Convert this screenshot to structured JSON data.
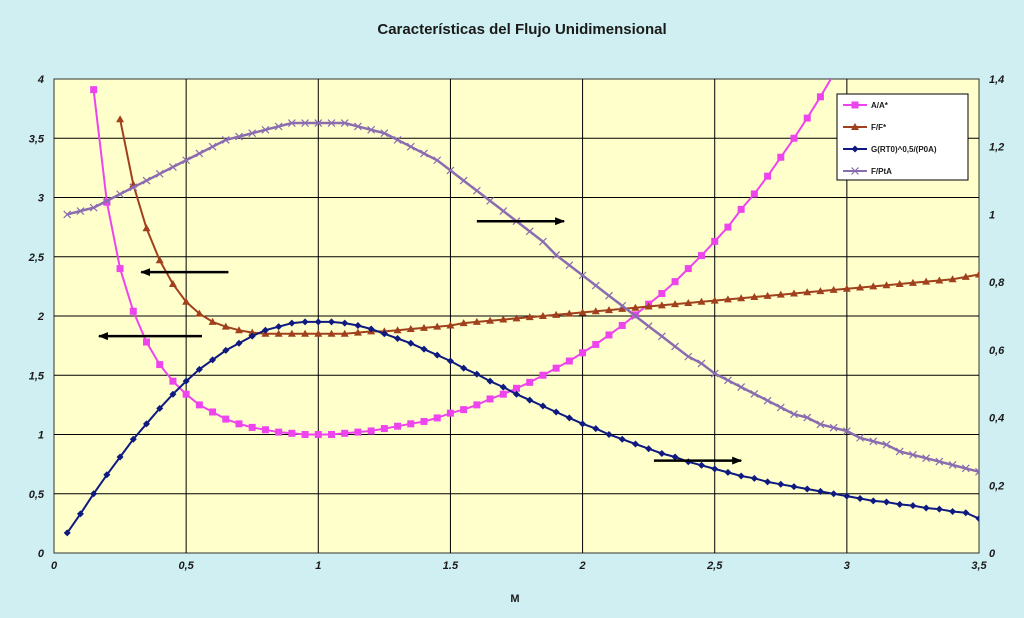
{
  "chart_data": {
    "type": "line",
    "title": "Características del Flujo Unidimensional",
    "xlabel": "M",
    "ylabel": "",
    "y2label": "",
    "xlim": [
      0,
      3.5
    ],
    "ylim": [
      0,
      4
    ],
    "y2lim": [
      0,
      1.4
    ],
    "x_ticks": [
      "0",
      "0,5",
      "1",
      "1.5",
      "2",
      "2,5",
      "3",
      "3,5"
    ],
    "x_tick_values": [
      0,
      0.5,
      1,
      1.5,
      2,
      2.5,
      3,
      3.5
    ],
    "y_ticks": [
      "0",
      "0,5",
      "1",
      "1,5",
      "2",
      "2,5",
      "3",
      "3,5",
      "4"
    ],
    "y_tick_values": [
      0,
      0.5,
      1,
      1.5,
      2,
      2.5,
      3,
      3.5,
      4
    ],
    "y2_ticks": [
      "0",
      "0,2",
      "0,4",
      "0,6",
      "0,8",
      "1",
      "1,2",
      "1,4"
    ],
    "y2_tick_values": [
      0,
      0.2,
      0.4,
      0.6,
      0.8,
      1.0,
      1.2,
      1.4
    ],
    "grid": true,
    "legend_position": "top-right",
    "colors": {
      "plot_bg": "#ffffcc",
      "page_bg": "#cfeff2",
      "grid": "#000000"
    },
    "series": [
      {
        "name": "A/A*",
        "axis": "left",
        "color": "#ee44ee",
        "marker": "square",
        "x": [
          0.15,
          0.2,
          0.25,
          0.3,
          0.35,
          0.4,
          0.45,
          0.5,
          0.55,
          0.6,
          0.65,
          0.7,
          0.75,
          0.8,
          0.85,
          0.9,
          0.95,
          1.0,
          1.05,
          1.1,
          1.15,
          1.2,
          1.25,
          1.3,
          1.35,
          1.4,
          1.45,
          1.5,
          1.55,
          1.6,
          1.65,
          1.7,
          1.75,
          1.8,
          1.85,
          1.9,
          1.95,
          2.0,
          2.05,
          2.1,
          2.15,
          2.2,
          2.25,
          2.3,
          2.35,
          2.4,
          2.45,
          2.5,
          2.55,
          2.6,
          2.65,
          2.7,
          2.75,
          2.8,
          2.85,
          2.9,
          2.95
        ],
        "values": [
          3.91,
          2.96,
          2.4,
          2.04,
          1.78,
          1.59,
          1.45,
          1.34,
          1.25,
          1.19,
          1.13,
          1.09,
          1.06,
          1.04,
          1.02,
          1.01,
          1.0,
          1.0,
          1.0,
          1.01,
          1.02,
          1.03,
          1.05,
          1.07,
          1.09,
          1.11,
          1.14,
          1.18,
          1.21,
          1.25,
          1.3,
          1.34,
          1.39,
          1.44,
          1.5,
          1.56,
          1.62,
          1.69,
          1.76,
          1.84,
          1.92,
          2.01,
          2.1,
          2.19,
          2.29,
          2.4,
          2.51,
          2.63,
          2.75,
          2.9,
          3.03,
          3.18,
          3.34,
          3.5,
          3.67,
          3.85,
          4.04
        ]
      },
      {
        "name": "F/F*",
        "axis": "left",
        "color": "#a0401c",
        "marker": "triangle",
        "x": [
          0.25,
          0.3,
          0.35,
          0.4,
          0.45,
          0.5,
          0.55,
          0.6,
          0.65,
          0.7,
          0.75,
          0.8,
          0.85,
          0.9,
          0.95,
          1.0,
          1.05,
          1.1,
          1.15,
          1.2,
          1.25,
          1.3,
          1.35,
          1.4,
          1.45,
          1.5,
          1.55,
          1.6,
          1.65,
          1.7,
          1.75,
          1.8,
          1.85,
          1.9,
          1.95,
          2.0,
          2.05,
          2.1,
          2.15,
          2.2,
          2.25,
          2.3,
          2.35,
          2.4,
          2.45,
          2.5,
          2.55,
          2.6,
          2.65,
          2.7,
          2.75,
          2.8,
          2.85,
          2.9,
          2.95,
          3.0,
          3.05,
          3.1,
          3.15,
          3.2,
          3.25,
          3.3,
          3.35,
          3.4,
          3.45,
          3.5
        ],
        "values": [
          3.66,
          3.11,
          2.74,
          2.47,
          2.27,
          2.12,
          2.02,
          1.95,
          1.91,
          1.88,
          1.86,
          1.85,
          1.85,
          1.85,
          1.85,
          1.85,
          1.85,
          1.85,
          1.86,
          1.87,
          1.87,
          1.88,
          1.89,
          1.9,
          1.91,
          1.92,
          1.94,
          1.95,
          1.96,
          1.97,
          1.98,
          1.99,
          2.0,
          2.01,
          2.02,
          2.03,
          2.04,
          2.05,
          2.06,
          2.07,
          2.08,
          2.09,
          2.1,
          2.11,
          2.12,
          2.13,
          2.14,
          2.15,
          2.16,
          2.17,
          2.18,
          2.19,
          2.2,
          2.21,
          2.22,
          2.23,
          2.24,
          2.25,
          2.26,
          2.27,
          2.28,
          2.29,
          2.3,
          2.31,
          2.33,
          2.35
        ]
      },
      {
        "name": "G(RT0)^0,5/(P0A)",
        "axis": "left",
        "color": "#0e1a80",
        "marker": "diamond",
        "x": [
          0.05,
          0.1,
          0.15,
          0.2,
          0.25,
          0.3,
          0.35,
          0.4,
          0.45,
          0.5,
          0.55,
          0.6,
          0.65,
          0.7,
          0.75,
          0.8,
          0.85,
          0.9,
          0.95,
          1.0,
          1.05,
          1.1,
          1.15,
          1.2,
          1.25,
          1.3,
          1.35,
          1.4,
          1.45,
          1.5,
          1.55,
          1.6,
          1.65,
          1.7,
          1.75,
          1.8,
          1.85,
          1.9,
          1.95,
          2.0,
          2.05,
          2.1,
          2.15,
          2.2,
          2.25,
          2.3,
          2.35,
          2.4,
          2.45,
          2.5,
          2.55,
          2.6,
          2.65,
          2.7,
          2.75,
          2.8,
          2.85,
          2.9,
          2.95,
          3.0,
          3.05,
          3.1,
          3.15,
          3.2,
          3.25,
          3.3,
          3.35,
          3.4,
          3.45,
          3.5
        ],
        "values": [
          0.17,
          0.33,
          0.5,
          0.66,
          0.81,
          0.96,
          1.09,
          1.22,
          1.34,
          1.45,
          1.55,
          1.63,
          1.71,
          1.77,
          1.83,
          1.88,
          1.91,
          1.94,
          1.95,
          1.95,
          1.95,
          1.94,
          1.92,
          1.89,
          1.85,
          1.81,
          1.77,
          1.72,
          1.67,
          1.62,
          1.56,
          1.51,
          1.45,
          1.4,
          1.34,
          1.29,
          1.24,
          1.19,
          1.14,
          1.09,
          1.05,
          1.0,
          0.96,
          0.92,
          0.88,
          0.84,
          0.81,
          0.77,
          0.74,
          0.71,
          0.68,
          0.65,
          0.63,
          0.6,
          0.58,
          0.56,
          0.54,
          0.52,
          0.5,
          0.48,
          0.46,
          0.44,
          0.43,
          0.41,
          0.4,
          0.38,
          0.37,
          0.35,
          0.34,
          0.29
        ]
      },
      {
        "name": "F/PtA",
        "axis": "right",
        "color": "#8a6cb0",
        "marker": "x",
        "x": [
          0.05,
          0.1,
          0.15,
          0.2,
          0.25,
          0.3,
          0.35,
          0.4,
          0.45,
          0.5,
          0.55,
          0.6,
          0.65,
          0.7,
          0.75,
          0.8,
          0.85,
          0.9,
          0.95,
          1.0,
          1.05,
          1.1,
          1.15,
          1.2,
          1.25,
          1.3,
          1.35,
          1.4,
          1.45,
          1.5,
          1.55,
          1.6,
          1.65,
          1.7,
          1.75,
          1.8,
          1.85,
          1.9,
          1.95,
          2.0,
          2.05,
          2.1,
          2.15,
          2.2,
          2.25,
          2.3,
          2.35,
          2.4,
          2.45,
          2.5,
          2.55,
          2.6,
          2.65,
          2.7,
          2.75,
          2.8,
          2.85,
          2.9,
          2.95,
          3.0,
          3.05,
          3.1,
          3.15,
          3.2,
          3.25,
          3.3,
          3.35,
          3.4,
          3.45,
          3.5
        ],
        "values": [
          1.0,
          1.01,
          1.02,
          1.04,
          1.06,
          1.08,
          1.1,
          1.12,
          1.14,
          1.16,
          1.18,
          1.2,
          1.22,
          1.23,
          1.24,
          1.25,
          1.26,
          1.27,
          1.27,
          1.27,
          1.27,
          1.27,
          1.26,
          1.25,
          1.24,
          1.22,
          1.2,
          1.18,
          1.16,
          1.13,
          1.1,
          1.07,
          1.04,
          1.01,
          0.98,
          0.95,
          0.92,
          0.88,
          0.85,
          0.82,
          0.79,
          0.76,
          0.73,
          0.7,
          0.67,
          0.64,
          0.61,
          0.58,
          0.56,
          0.53,
          0.51,
          0.49,
          0.47,
          0.45,
          0.43,
          0.41,
          0.4,
          0.38,
          0.37,
          0.36,
          0.34,
          0.33,
          0.32,
          0.3,
          0.29,
          0.28,
          0.27,
          0.26,
          0.25,
          0.24
        ]
      }
    ],
    "annotations": [
      {
        "type": "arrow",
        "direction": "left",
        "from": [
          0.66,
          2.37
        ],
        "to": [
          0.33,
          2.37
        ]
      },
      {
        "type": "arrow",
        "direction": "left",
        "from": [
          0.56,
          1.83
        ],
        "to": [
          0.17,
          1.83
        ]
      },
      {
        "type": "arrow",
        "direction": "right",
        "from": [
          1.6,
          2.8
        ],
        "to": [
          1.93,
          2.8
        ]
      },
      {
        "type": "arrow",
        "direction": "right",
        "from": [
          2.27,
          0.78
        ],
        "to": [
          2.6,
          0.78
        ]
      }
    ]
  }
}
